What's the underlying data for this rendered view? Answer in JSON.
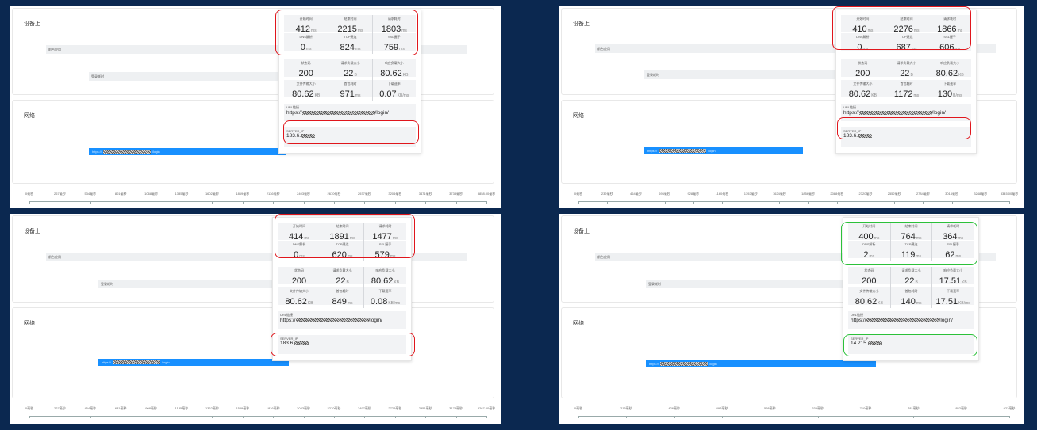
{
  "colors": {
    "background": "#0b2850",
    "net_bar": "#1890ff",
    "highlight_red": "#e0161c",
    "highlight_green": "#2cc13a"
  },
  "labels": {
    "device_section": "设备上",
    "network_section": "网络",
    "bar_frontend": "前台应用",
    "bar_login": "登录耗时",
    "start_time": "开始时间",
    "end_time": "结束时间",
    "request_duration": "请求耗时",
    "dns": "DNS解析",
    "tcp": "TCP建连",
    "ssl": "SSL握手",
    "status_code": "状态码",
    "req_body_size": "请求负载大小",
    "resp_body_size": "响应负载大小",
    "file_transfer_size": "文件传输大小",
    "first_packet": "首包耗时",
    "download_speed": "下载速率",
    "url_link": "URL链接",
    "server_ip": "SERVER_IP"
  },
  "panels": [
    {
      "highlight": "red",
      "metrics": {
        "start": "412",
        "end": "2215",
        "duration": "1803",
        "dns": "0",
        "tcp": "824",
        "ssl": "759"
      },
      "status": "200",
      "req_size": "22",
      "resp_size": "80.62",
      "transfer": "80.62",
      "first_packet": "971",
      "speed": "0.07",
      "speed_unit": "KB/ms",
      "resp_unit": "KB",
      "url_prefix": "https://",
      "url_suffix": "/login/",
      "ip_prefix": "183.6.",
      "net_prefix": "https://",
      "net_suffix": "/login",
      "ticks": [
        "0毫秒",
        "267毫秒",
        "534毫秒",
        "801毫秒",
        "1068毫秒",
        "1335毫秒",
        "1602毫秒",
        "1869毫秒",
        "2136毫秒",
        "2403毫秒",
        "2670毫秒",
        "2937毫秒",
        "3204毫秒",
        "3471毫秒",
        "3738毫秒",
        "3858.00毫秒"
      ]
    },
    {
      "highlight": "red",
      "metrics": {
        "start": "410",
        "end": "2276",
        "duration": "1866",
        "dns": "0",
        "tcp": "687",
        "ssl": "606"
      },
      "status": "200",
      "req_size": "22",
      "resp_size": "80.62",
      "transfer": "80.62",
      "first_packet": "1172",
      "speed": "130",
      "speed_unit": "B/ms",
      "resp_unit": "KB",
      "url_prefix": "https://",
      "url_suffix": "/login/",
      "ip_prefix": "183.6.",
      "net_prefix": "https://",
      "net_suffix": "/login",
      "ticks": [
        "0毫秒",
        "232毫秒",
        "464毫秒",
        "696毫秒",
        "928毫秒",
        "1160毫秒",
        "1392毫秒",
        "1624毫秒",
        "1856毫秒",
        "2088毫秒",
        "2320毫秒",
        "2552毫秒",
        "2784毫秒",
        "3016毫秒",
        "3248毫秒",
        "3345.00毫秒"
      ]
    },
    {
      "highlight": "red",
      "metrics": {
        "start": "414",
        "end": "1891",
        "duration": "1477",
        "dns": "0",
        "tcp": "620",
        "ssl": "579"
      },
      "status": "200",
      "req_size": "22",
      "resp_size": "80.62",
      "transfer": "80.62",
      "first_packet": "849",
      "speed": "0.08",
      "speed_unit": "KB/ms",
      "resp_unit": "KB",
      "url_prefix": "https://",
      "url_suffix": "/login/",
      "ip_prefix": "183.6.",
      "net_prefix": "https://",
      "net_suffix": "/login",
      "ticks": [
        "0毫秒",
        "227毫秒",
        "454毫秒",
        "681毫秒",
        "908毫秒",
        "1135毫秒",
        "1362毫秒",
        "1589毫秒",
        "1816毫秒",
        "2043毫秒",
        "2270毫秒",
        "2497毫秒",
        "2724毫秒",
        "2951毫秒",
        "3178毫秒",
        "3267.00毫秒"
      ]
    },
    {
      "highlight": "green",
      "metrics": {
        "start": "400",
        "end": "764",
        "duration": "364",
        "dns": "2",
        "tcp": "119",
        "ssl": "62"
      },
      "status": "200",
      "req_size": "22",
      "resp_size": "17.51",
      "transfer": "80.62",
      "first_packet": "140",
      "speed": "17.51",
      "speed_unit": "KB/ms",
      "resp_unit": "KB",
      "url_prefix": "https://",
      "url_suffix": "/login/",
      "ip_prefix": "14.215.",
      "net_prefix": "https://",
      "net_suffix": "/login",
      "ticks": [
        "0毫秒",
        "213毫秒",
        "426毫秒",
        "497毫秒",
        "568毫秒",
        "639毫秒",
        "710毫秒",
        "781毫秒",
        "852毫秒",
        "923毫秒"
      ]
    }
  ],
  "units": {
    "ms": "ms",
    "B": "B"
  }
}
